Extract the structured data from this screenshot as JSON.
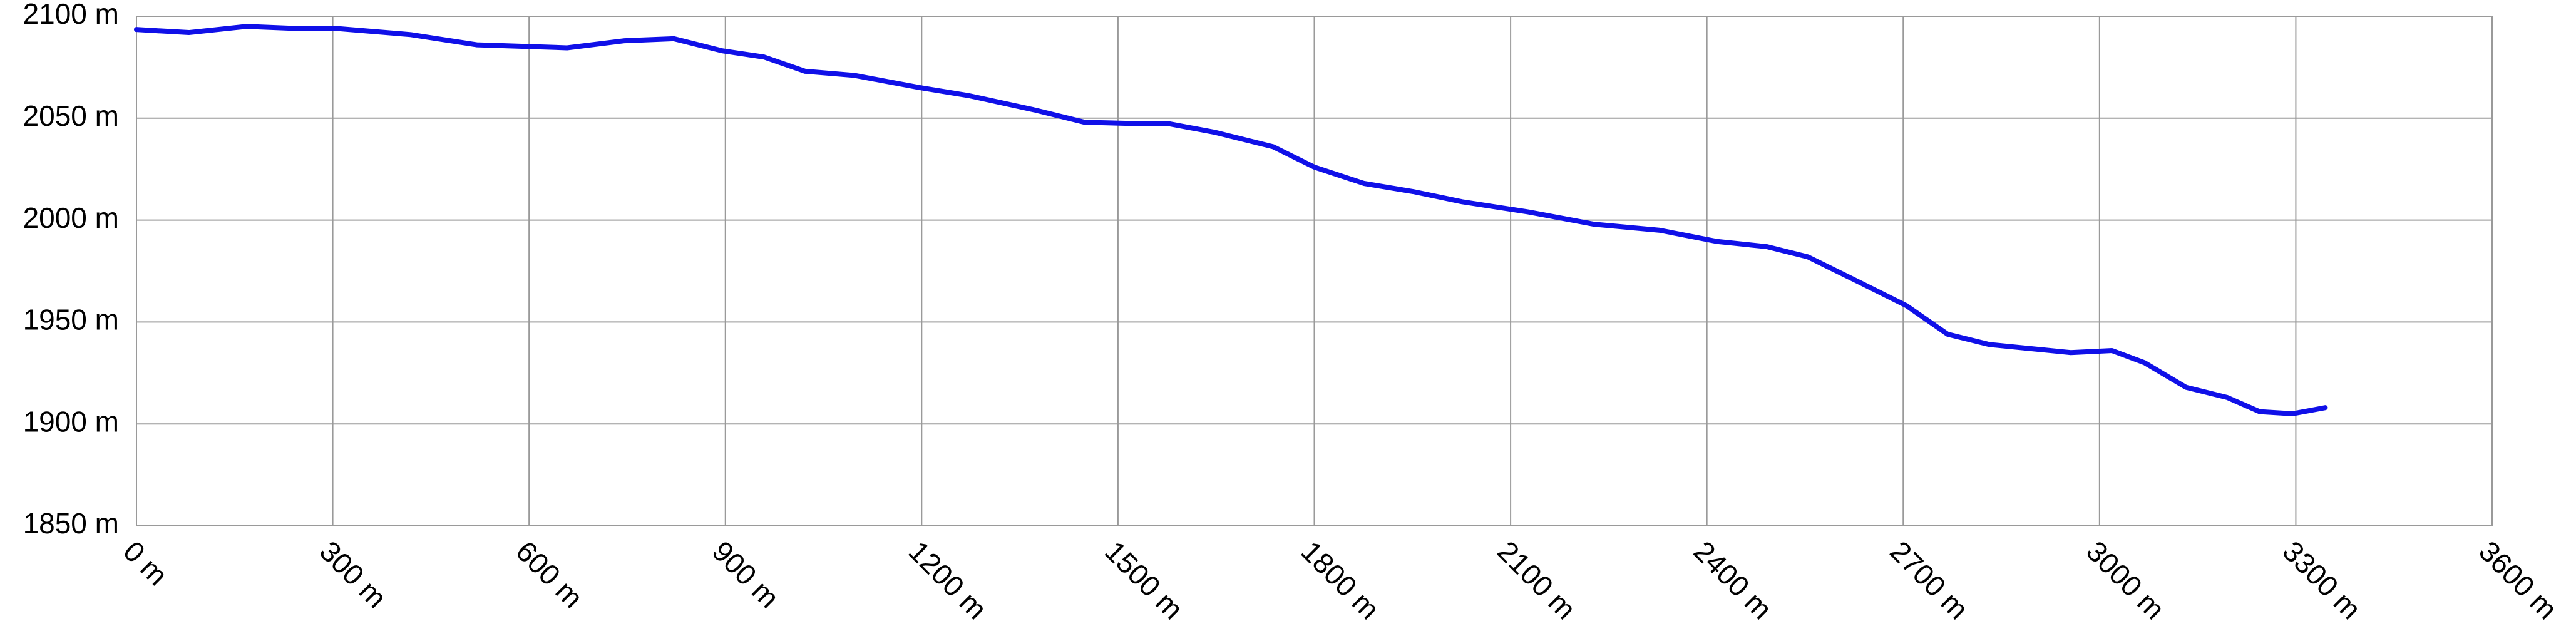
{
  "chart_data": {
    "type": "line",
    "x": [
      0,
      80,
      168,
      244,
      306,
      419,
      520,
      658,
      746,
      821,
      896,
      959,
      1022,
      1097,
      1197,
      1273,
      1373,
      1449,
      1511,
      1574,
      1649,
      1737,
      1800,
      1876,
      1951,
      2026,
      2127,
      2227,
      2328,
      2416,
      2491,
      2554,
      2630,
      2705,
      2768,
      2831,
      2956,
      3019,
      3069,
      3132,
      3195,
      3245,
      3295,
      3345
    ],
    "series": [
      {
        "color": "#1010e8",
        "values": [
          2093.5,
          2092,
          2095,
          2094,
          2094,
          2091,
          2086,
          2084.5,
          2088,
          2089,
          2083,
          2080,
          2073,
          2071,
          2065,
          2061,
          2054,
          2048,
          2047.5,
          2047.5,
          2043,
          2036,
          2026,
          2018,
          2014,
          2009,
          2004,
          1998,
          1995,
          1989.5,
          1987,
          1982,
          1970,
          1958,
          1944,
          1939,
          1935,
          1936,
          1930,
          1918,
          1913,
          1906,
          1905,
          1908
        ]
      }
    ],
    "xlim": [
      0,
      3600
    ],
    "ylim": [
      1850,
      2100
    ],
    "xticks": [
      {
        "value": 0,
        "label": "0 m"
      },
      {
        "value": 300,
        "label": "300 m"
      },
      {
        "value": 600,
        "label": "600 m"
      },
      {
        "value": 900,
        "label": "900 m"
      },
      {
        "value": 1200,
        "label": "1200 m"
      },
      {
        "value": 1500,
        "label": "1500 m"
      },
      {
        "value": 1800,
        "label": "1800 m"
      },
      {
        "value": 2100,
        "label": "2100 m"
      },
      {
        "value": 2400,
        "label": "2400 m"
      },
      {
        "value": 2700,
        "label": "2700 m"
      },
      {
        "value": 3000,
        "label": "3000 m"
      },
      {
        "value": 3300,
        "label": "3300 m"
      },
      {
        "value": 3600,
        "label": "3600 m"
      }
    ],
    "yticks": [
      {
        "value": 1850,
        "label": "1850 m"
      },
      {
        "value": 1900,
        "label": "1900 m"
      },
      {
        "value": 1950,
        "label": "1950 m"
      },
      {
        "value": 2000,
        "label": "2000 m"
      },
      {
        "value": 2050,
        "label": "2050 m"
      },
      {
        "value": 2100,
        "label": "2100 m"
      }
    ],
    "grid": true
  }
}
